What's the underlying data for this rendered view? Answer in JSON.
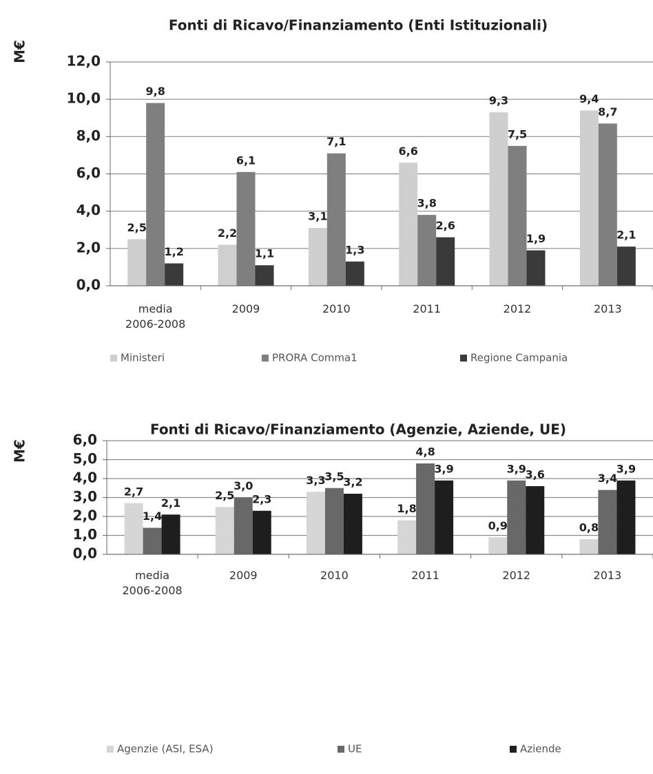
{
  "chart_data": [
    {
      "type": "bar",
      "title": "Fonti di Ricavo/Finanziamento (Enti Istituzionali)",
      "y_label": "M€",
      "categories": [
        "media 2006-2008",
        "2009",
        "2010",
        "2011",
        "2012",
        "2013"
      ],
      "series": [
        {
          "name": "Ministeri",
          "color": "#cfcfcf",
          "values": [
            2.5,
            2.2,
            3.1,
            6.6,
            9.3,
            9.4
          ],
          "value_labels": [
            "2,5",
            "2,2",
            "3,1",
            "6,6",
            "9,3",
            "9,4"
          ]
        },
        {
          "name": "PRORA Comma1",
          "color": "#7f7f7f",
          "values": [
            9.8,
            6.1,
            7.1,
            3.8,
            7.5,
            8.7
          ],
          "value_labels": [
            "9,8",
            "6,1",
            "7,1",
            "3,8",
            "7,5",
            "8,7"
          ]
        },
        {
          "name": "Regione Campania",
          "color": "#3a3a3a",
          "values": [
            1.2,
            1.1,
            1.3,
            2.6,
            1.9,
            2.1
          ],
          "value_labels": [
            "1,2",
            "1,1",
            "1,3",
            "2,6",
            "1,9",
            "2,1"
          ]
        }
      ],
      "ylim": [
        0,
        12
      ],
      "yticks": [
        {
          "value": 0,
          "label": "0,0"
        },
        {
          "value": 2,
          "label": "2,0"
        },
        {
          "value": 4,
          "label": "4,0"
        },
        {
          "value": 6,
          "label": "6,0"
        },
        {
          "value": 8,
          "label": "8,0"
        },
        {
          "value": 10,
          "label": "10,0"
        },
        {
          "value": 12,
          "label": "12,0"
        }
      ],
      "grid": true,
      "legend": "bottom"
    },
    {
      "type": "bar",
      "title": "Fonti di Ricavo/Finanziamento (Agenzie, Aziende, UE)",
      "y_label": "M€",
      "categories": [
        "media 2006-2008",
        "2009",
        "2010",
        "2011",
        "2012",
        "2013"
      ],
      "series": [
        {
          "name": "Agenzie (ASI, ESA)",
          "color": "#d6d6d6",
          "values": [
            2.7,
            2.5,
            3.3,
            1.8,
            0.9,
            0.8
          ],
          "value_labels": [
            "2,7",
            "2,5",
            "3,3",
            "1,8",
            "0,9",
            "0,8"
          ]
        },
        {
          "name": "UE",
          "color": "#686868",
          "values": [
            1.4,
            3.0,
            3.5,
            4.8,
            3.9,
            3.4
          ],
          "value_labels": [
            "1,4",
            "3,0",
            "3,5",
            "4,8",
            "3,9",
            "3,4"
          ]
        },
        {
          "name": "Aziende",
          "color": "#1e1e1e",
          "values": [
            2.1,
            2.3,
            3.2,
            3.9,
            3.6,
            3.9
          ],
          "value_labels": [
            "2,1",
            "2,3",
            "3,2",
            "3,9",
            "3,6",
            "3,9"
          ]
        }
      ],
      "ylim": [
        0,
        6
      ],
      "yticks": [
        {
          "value": 0,
          "label": "0,0"
        },
        {
          "value": 1,
          "label": "1,0"
        },
        {
          "value": 2,
          "label": "2,0"
        },
        {
          "value": 3,
          "label": "3,0"
        },
        {
          "value": 4,
          "label": "4,0"
        },
        {
          "value": 5,
          "label": "5,0"
        },
        {
          "value": 6,
          "label": "6,0"
        }
      ],
      "grid": true,
      "legend": "bottom"
    }
  ]
}
